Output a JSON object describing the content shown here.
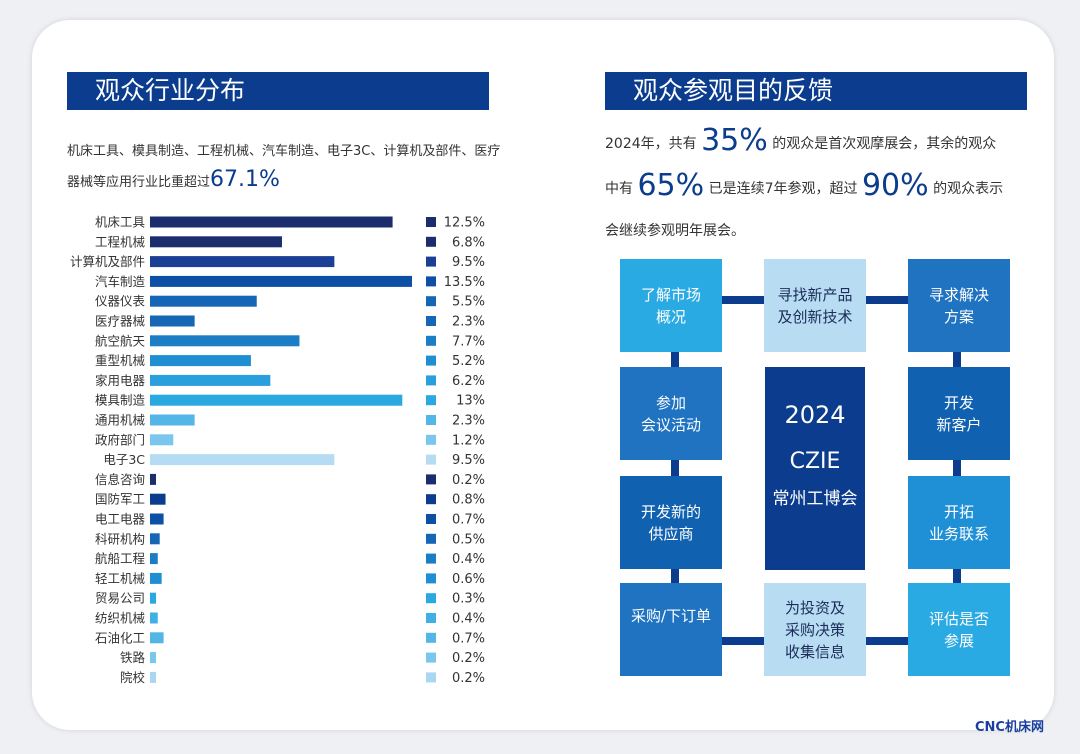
{
  "left_panel": {
    "title": "观众行业分布",
    "intro_line1": "机床工具、模具制造、工程机械、汽车制造、电子3C、计算机及部件、医疗",
    "intro_line2": "器械等应用行业比重超过",
    "intro_highlight": "67.1%"
  },
  "right_panel": {
    "title": "观众参观目的反馈",
    "text_parts": [
      "2024年，共有 ",
      "35%",
      " 的观众是首次观摩展会，其余的观众",
      "中有 ",
      "65%",
      " 已是连续7年参观，超过 ",
      "90%",
      " 的观众表示",
      "会继续参观明年展会。"
    ],
    "boxes": [
      {
        "label": "了解市场\n概况",
        "color": "#2aaae2"
      },
      {
        "label": "寻找新产品\n及创新技术",
        "color": "#b8ddf3"
      },
      {
        "label": "寻求解决\n方案",
        "color": "#1f73c0"
      },
      {
        "label": "参加\n会议活动",
        "color": "#1f73c0"
      },
      {
        "label": "开发\n新客户",
        "color": "#1062b0"
      },
      {
        "label": "开发新的\n供应商",
        "color": "#1062b0"
      },
      {
        "label": "开拓\n业务联系",
        "color": "#1f8fd6"
      },
      {
        "label": "采购/下订单",
        "color": "#1f73c0"
      },
      {
        "label": "为投资及\n采购决策\n收集信息",
        "color": "#b8ddf3"
      },
      {
        "label": "评估是否\n参展",
        "color": "#2aaae2"
      }
    ],
    "center": {
      "year": "2024",
      "brand": "CZIE",
      "name": "常州工博会"
    }
  },
  "chart_data": {
    "type": "bar",
    "orientation": "horizontal",
    "categories": [
      "机床工具",
      "工程机械",
      "计算机及部件",
      "汽车制造",
      "仪器仪表",
      "医疗器械",
      "航空航天",
      "重型机械",
      "家用电器",
      "模具制造",
      "通用机械",
      "政府部门",
      "电子3C",
      "信息咨询",
      "国防军工",
      "电工电器",
      "科研机构",
      "航船工程",
      "轻工机械",
      "贸易公司",
      "纺织机械",
      "石油化工",
      "铁路",
      "院校"
    ],
    "values": [
      12.5,
      6.8,
      9.5,
      13.5,
      5.5,
      2.3,
      7.7,
      5.2,
      6.2,
      13,
      2.3,
      1.2,
      9.5,
      0.2,
      0.8,
      0.7,
      0.5,
      0.4,
      0.6,
      0.3,
      0.4,
      0.7,
      0.2,
      0.2
    ],
    "value_labels": [
      "12.5%",
      "6.8%",
      "9.5%",
      "13.5%",
      "5.5%",
      "2.3%",
      "7.7%",
      "5.2%",
      "6.2%",
      "13%",
      "2.3%",
      "1.2%",
      "9.5%",
      "0.2%",
      "0.8%",
      "0.7%",
      "0.5%",
      "0.4%",
      "0.6%",
      "0.3%",
      "0.4%",
      "0.7%",
      "0.2%",
      "0.2%"
    ],
    "colors": [
      "#1c2d6e",
      "#1c2d6e",
      "#1c3f96",
      "#0e4fa6",
      "#1666b6",
      "#1666b6",
      "#1a7dc6",
      "#1f8ed3",
      "#2a9fdd",
      "#2aa8e0",
      "#53b6e6",
      "#7ac6ec",
      "#b5dcf3",
      "#1c2d6e",
      "#0b3c8e",
      "#0e4fa6",
      "#1666b6",
      "#1a7dc6",
      "#1f8ed3",
      "#2aa8e0",
      "#3fb0e3",
      "#53b6e6",
      "#7ac6ec",
      "#a9d6f1"
    ],
    "xlim": [
      0,
      15
    ]
  },
  "watermark": "CNC机床网"
}
